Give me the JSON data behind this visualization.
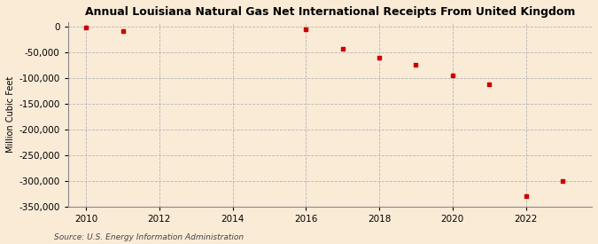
{
  "title": "Annual Louisiana Natural Gas Net International Receipts From United Kingdom",
  "ylabel": "Million Cubic Feet",
  "source": "Source: U.S. Energy Information Administration",
  "background_color": "#faebd7",
  "plot_background_color": "#faebd7",
  "marker_color": "#cc0000",
  "grid_color": "#b0b0b0",
  "years": [
    2010,
    2011,
    2016,
    2017,
    2018,
    2019,
    2020,
    2021,
    2022,
    2023
  ],
  "values": [
    -2000,
    -8000,
    -5000,
    -43000,
    -60000,
    -75000,
    -95000,
    -113000,
    -330000,
    -300000
  ],
  "xlim": [
    2009.5,
    2023.8
  ],
  "ylim": [
    -350000,
    8000
  ],
  "yticks": [
    0,
    -50000,
    -100000,
    -150000,
    -200000,
    -250000,
    -300000,
    -350000
  ],
  "xticks": [
    2010,
    2012,
    2014,
    2016,
    2018,
    2020,
    2022
  ]
}
